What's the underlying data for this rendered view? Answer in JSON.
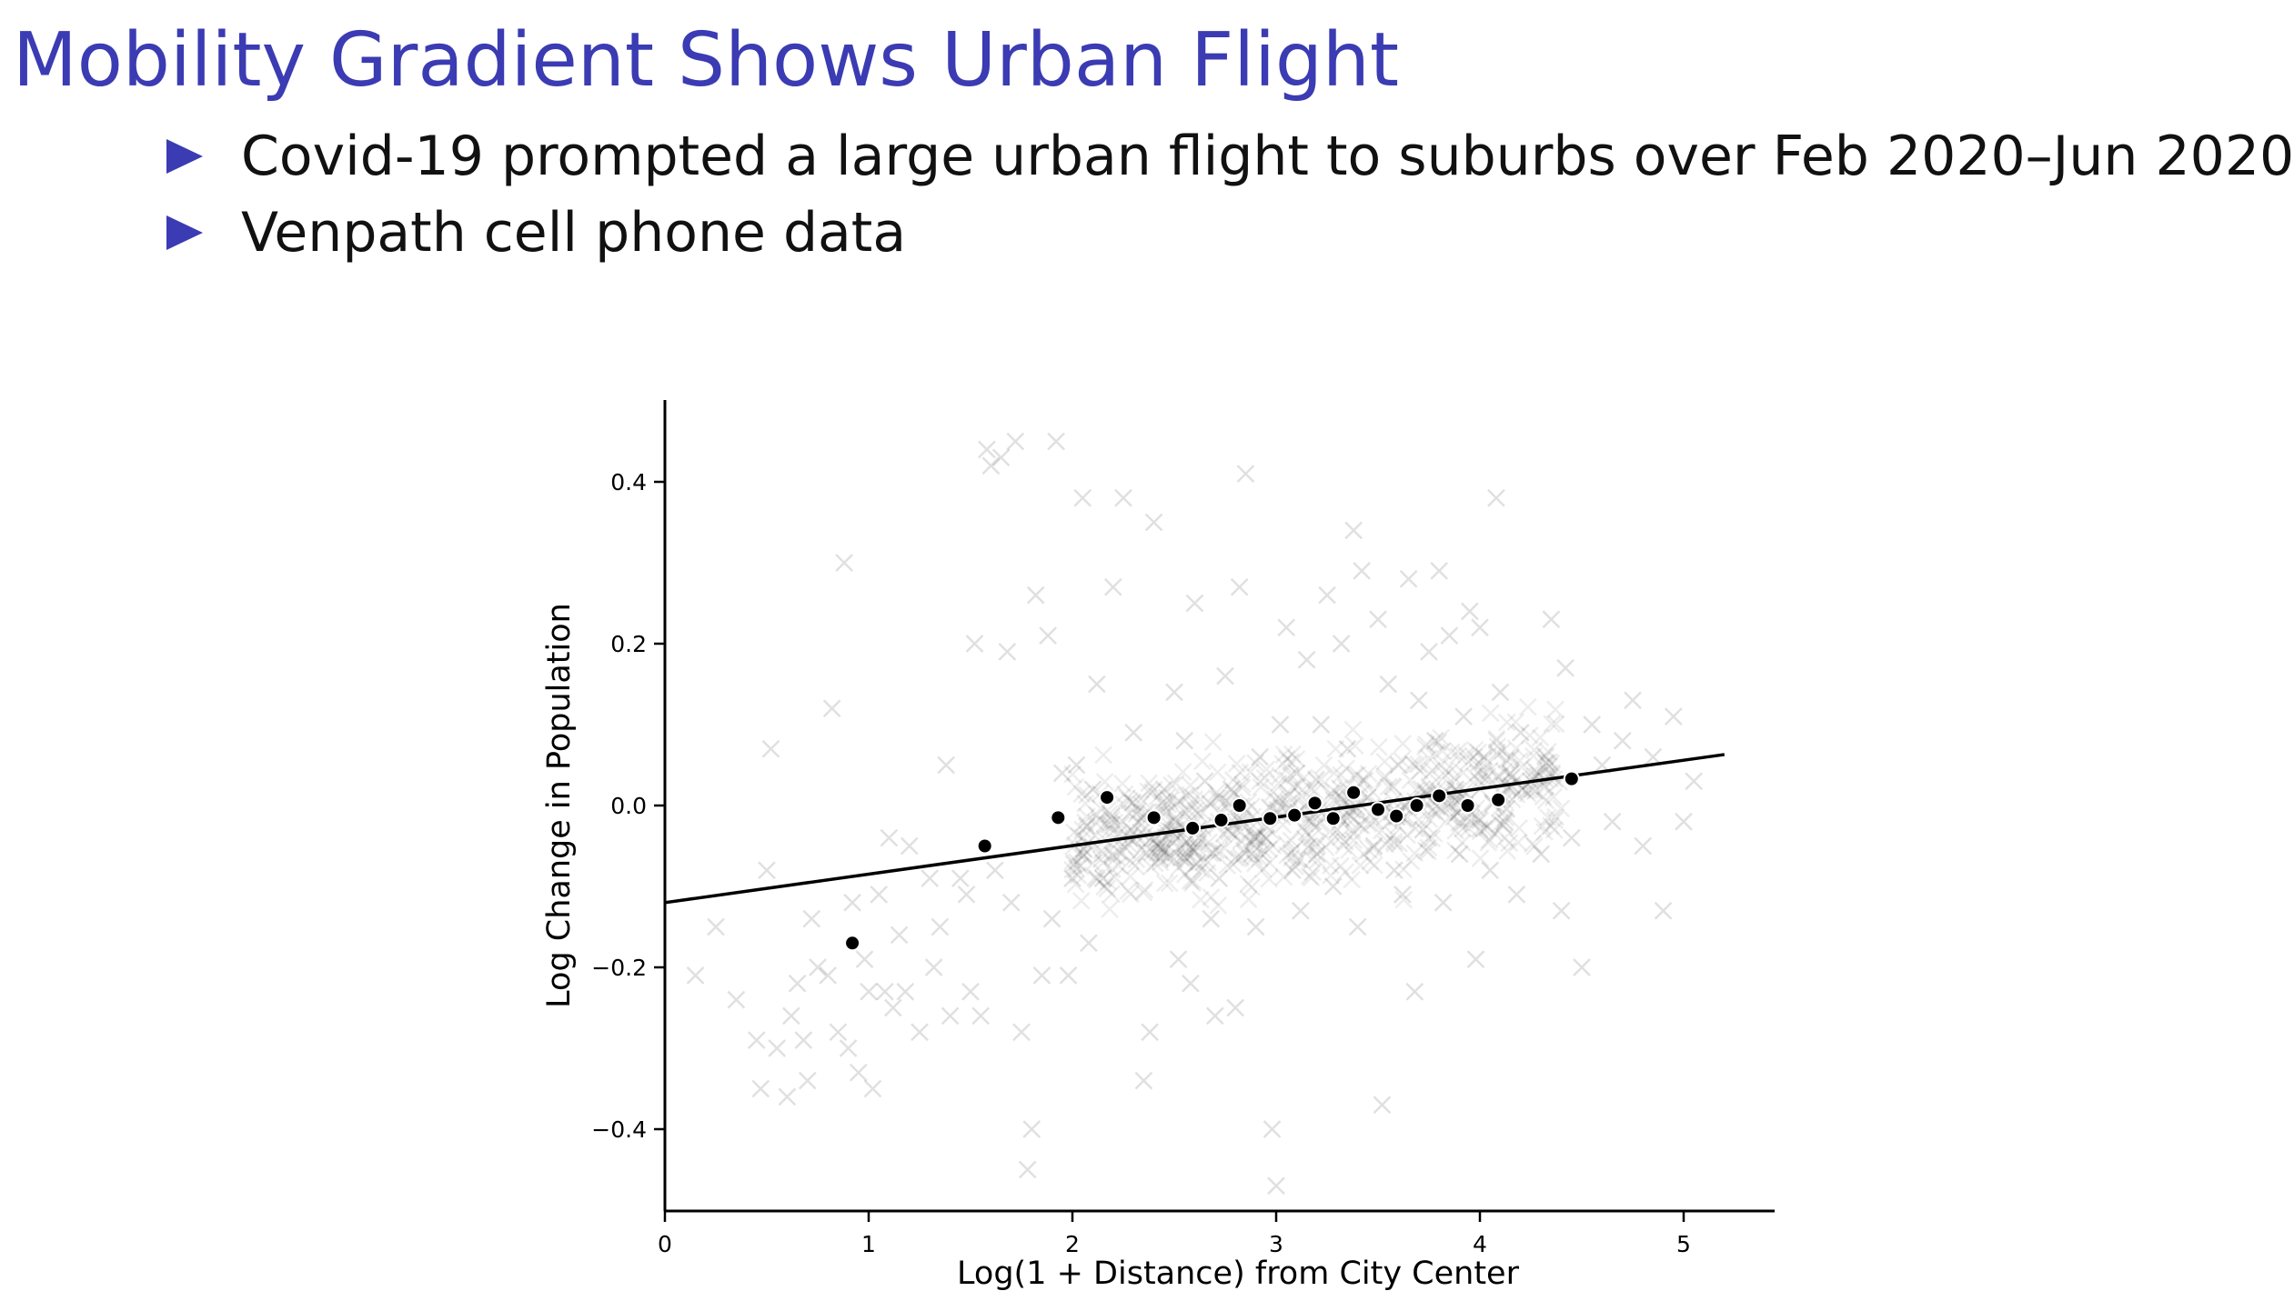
{
  "slide": {
    "title": "Mobility Gradient Shows Urban Flight",
    "bullets": [
      "Covid-19 prompted a large urban flight to suburbs over Feb 2020–Jun 2020",
      "Venpath cell phone data"
    ]
  },
  "colors": {
    "title": "#3b3bb3",
    "bullet_marker": "#3b3bb3",
    "scatter_marker": "#000000",
    "binned_point": "#000000",
    "fit_line": "#000000"
  },
  "chart_data": {
    "type": "scatter",
    "xlabel": "Log(1 + Distance) from City Center",
    "ylabel": "Log Change in Population",
    "xlim": [
      0,
      5.5
    ],
    "ylim": [
      -0.5,
      0.5
    ],
    "xticks": [
      0,
      1,
      2,
      3,
      4,
      5
    ],
    "yticks": [
      -0.4,
      -0.2,
      0.0,
      0.2,
      0.4
    ],
    "xtick_labels": [
      "0",
      "1",
      "2",
      "3",
      "4",
      "5"
    ],
    "ytick_labels": [
      "−0.4",
      "−0.2",
      "0.0",
      "0.2",
      "0.4"
    ],
    "grid": false,
    "spines": [
      "left",
      "bottom"
    ],
    "series": [
      {
        "kind": "scatter",
        "marker": "x",
        "opacity": 0.12,
        "points": [
          [
            0.15,
            -0.21
          ],
          [
            0.25,
            -0.15
          ],
          [
            0.35,
            -0.24
          ],
          [
            0.45,
            -0.29
          ],
          [
            0.47,
            -0.35
          ],
          [
            0.5,
            -0.08
          ],
          [
            0.52,
            0.07
          ],
          [
            0.55,
            -0.3
          ],
          [
            0.6,
            -0.36
          ],
          [
            0.62,
            -0.26
          ],
          [
            0.65,
            -0.22
          ],
          [
            0.68,
            -0.29
          ],
          [
            0.7,
            -0.34
          ],
          [
            0.72,
            -0.14
          ],
          [
            0.75,
            -0.2
          ],
          [
            0.8,
            -0.21
          ],
          [
            0.82,
            0.12
          ],
          [
            0.85,
            -0.28
          ],
          [
            0.88,
            0.3
          ],
          [
            0.9,
            -0.3
          ],
          [
            0.92,
            -0.12
          ],
          [
            0.95,
            -0.33
          ],
          [
            0.98,
            -0.19
          ],
          [
            1.0,
            -0.23
          ],
          [
            1.02,
            -0.35
          ],
          [
            1.05,
            -0.11
          ],
          [
            1.08,
            -0.23
          ],
          [
            1.1,
            -0.04
          ],
          [
            1.12,
            -0.25
          ],
          [
            1.15,
            -0.16
          ],
          [
            1.18,
            -0.23
          ],
          [
            1.2,
            -0.05
          ],
          [
            1.25,
            -0.28
          ],
          [
            1.3,
            -0.09
          ],
          [
            1.32,
            -0.2
          ],
          [
            1.35,
            -0.15
          ],
          [
            1.38,
            0.05
          ],
          [
            1.4,
            -0.26
          ],
          [
            1.45,
            -0.09
          ],
          [
            1.48,
            -0.11
          ],
          [
            1.5,
            -0.23
          ],
          [
            1.52,
            0.2
          ],
          [
            1.55,
            -0.26
          ],
          [
            1.58,
            0.44
          ],
          [
            1.6,
            0.42
          ],
          [
            1.62,
            -0.08
          ],
          [
            1.65,
            0.43
          ],
          [
            1.68,
            0.19
          ],
          [
            1.7,
            -0.12
          ],
          [
            1.72,
            0.45
          ],
          [
            1.75,
            -0.28
          ],
          [
            1.78,
            -0.45
          ],
          [
            1.8,
            -0.4
          ],
          [
            1.82,
            0.26
          ],
          [
            1.85,
            -0.21
          ],
          [
            1.88,
            0.21
          ],
          [
            1.9,
            -0.14
          ],
          [
            1.92,
            0.45
          ],
          [
            1.95,
            0.04
          ],
          [
            1.98,
            -0.21
          ],
          [
            2.0,
            -0.09
          ],
          [
            2.02,
            0.05
          ],
          [
            2.05,
            0.38
          ],
          [
            2.08,
            -0.17
          ],
          [
            2.1,
            0.02
          ],
          [
            2.12,
            0.15
          ],
          [
            2.15,
            -0.09
          ],
          [
            2.2,
            0.27
          ],
          [
            2.25,
            0.38
          ],
          [
            2.28,
            -0.04
          ],
          [
            2.3,
            0.09
          ],
          [
            2.35,
            -0.34
          ],
          [
            2.38,
            -0.28
          ],
          [
            2.4,
            0.35
          ],
          [
            2.42,
            -0.05
          ],
          [
            2.45,
            0.02
          ],
          [
            2.5,
            0.14
          ],
          [
            2.52,
            -0.19
          ],
          [
            2.55,
            0.08
          ],
          [
            2.58,
            -0.22
          ],
          [
            2.6,
            0.25
          ],
          [
            2.62,
            -0.04
          ],
          [
            2.65,
            0.03
          ],
          [
            2.68,
            -0.14
          ],
          [
            2.7,
            -0.26
          ],
          [
            2.72,
            -0.09
          ],
          [
            2.75,
            0.16
          ],
          [
            2.78,
            0.02
          ],
          [
            2.8,
            -0.25
          ],
          [
            2.82,
            0.27
          ],
          [
            2.85,
            0.41
          ],
          [
            2.88,
            -0.06
          ],
          [
            2.9,
            -0.15
          ],
          [
            2.92,
            0.06
          ],
          [
            2.95,
            -0.04
          ],
          [
            2.98,
            -0.4
          ],
          [
            3.0,
            -0.47
          ],
          [
            3.02,
            0.1
          ],
          [
            3.05,
            0.22
          ],
          [
            3.08,
            -0.08
          ],
          [
            3.1,
            0.04
          ],
          [
            3.12,
            -0.13
          ],
          [
            3.15,
            0.18
          ],
          [
            3.18,
            -0.02
          ],
          [
            3.2,
            -0.06
          ],
          [
            3.22,
            0.1
          ],
          [
            3.25,
            0.26
          ],
          [
            3.28,
            -0.1
          ],
          [
            3.3,
            -0.03
          ],
          [
            3.32,
            0.2
          ],
          [
            3.35,
            0.07
          ],
          [
            3.38,
            0.34
          ],
          [
            3.4,
            -0.15
          ],
          [
            3.42,
            0.29
          ],
          [
            3.45,
            0.01
          ],
          [
            3.48,
            -0.05
          ],
          [
            3.5,
            0.23
          ],
          [
            3.52,
            -0.37
          ],
          [
            3.55,
            0.15
          ],
          [
            3.58,
            -0.08
          ],
          [
            3.6,
            0.05
          ],
          [
            3.62,
            -0.11
          ],
          [
            3.65,
            0.28
          ],
          [
            3.68,
            -0.23
          ],
          [
            3.7,
            0.13
          ],
          [
            3.72,
            -0.03
          ],
          [
            3.75,
            0.19
          ],
          [
            3.78,
            0.08
          ],
          [
            3.8,
            0.29
          ],
          [
            3.82,
            -0.12
          ],
          [
            3.85,
            0.21
          ],
          [
            3.88,
            0.02
          ],
          [
            3.9,
            -0.06
          ],
          [
            3.92,
            0.11
          ],
          [
            3.95,
            0.24
          ],
          [
            3.98,
            -0.19
          ],
          [
            4.0,
            0.22
          ],
          [
            4.02,
            0.06
          ],
          [
            4.05,
            -0.08
          ],
          [
            4.08,
            0.38
          ],
          [
            4.1,
            0.14
          ],
          [
            4.12,
            -0.02
          ],
          [
            4.15,
            0.04
          ],
          [
            4.18,
            -0.11
          ],
          [
            4.2,
            0.09
          ],
          [
            4.25,
            0.03
          ],
          [
            4.3,
            -0.06
          ],
          [
            4.35,
            0.23
          ],
          [
            4.4,
            -0.13
          ],
          [
            4.42,
            0.17
          ],
          [
            4.45,
            -0.04
          ],
          [
            4.5,
            -0.2
          ],
          [
            4.55,
            0.1
          ],
          [
            4.6,
            0.05
          ],
          [
            4.65,
            -0.02
          ],
          [
            4.7,
            0.08
          ],
          [
            4.75,
            0.13
          ],
          [
            4.8,
            -0.05
          ],
          [
            4.85,
            0.06
          ],
          [
            4.9,
            -0.13
          ],
          [
            4.95,
            0.11
          ],
          [
            5.0,
            -0.02
          ],
          [
            5.05,
            0.03
          ]
        ]
      },
      {
        "kind": "binned_means",
        "marker": "o",
        "points": [
          [
            0.92,
            -0.17
          ],
          [
            1.57,
            -0.05
          ],
          [
            1.93,
            -0.015
          ],
          [
            2.17,
            0.01
          ],
          [
            2.4,
            -0.015
          ],
          [
            2.59,
            -0.028
          ],
          [
            2.73,
            -0.018
          ],
          [
            2.82,
            0.0
          ],
          [
            2.97,
            -0.016
          ],
          [
            3.09,
            -0.012
          ],
          [
            3.19,
            0.003
          ],
          [
            3.28,
            -0.016
          ],
          [
            3.38,
            0.016
          ],
          [
            3.5,
            -0.005
          ],
          [
            3.59,
            -0.013
          ],
          [
            3.69,
            0.0
          ],
          [
            3.8,
            0.012
          ],
          [
            3.94,
            0.0
          ],
          [
            4.09,
            0.007
          ],
          [
            4.45,
            0.033
          ]
        ]
      },
      {
        "kind": "fit_line",
        "x": [
          0.0,
          5.2
        ],
        "y": [
          -0.12,
          0.063
        ]
      }
    ]
  }
}
